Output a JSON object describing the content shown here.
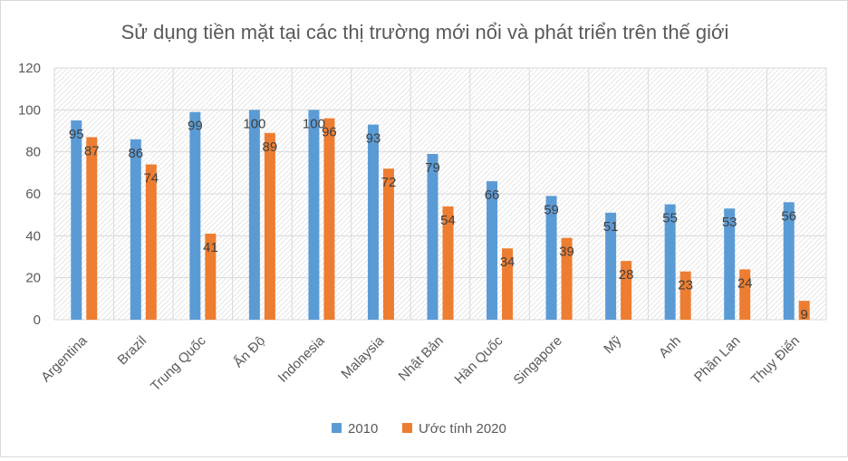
{
  "chart_data": {
    "type": "bar",
    "title": "Sử dụng tiền mặt tại các thị trường mới nổi và phát triển trên thế giới",
    "categories": [
      "Argentina",
      "Brazil",
      "Trung Quốc",
      "Ấn Độ",
      "Indonesia",
      "Malaysia",
      "Nhật Bản",
      "Hàn Quốc",
      "Singapore",
      "Mỹ",
      "Anh",
      "Phần Lan",
      "Thụy Điển"
    ],
    "series": [
      {
        "name": "2010",
        "color": "#5b9bd5",
        "values": [
          95,
          86,
          99,
          100,
          100,
          93,
          79,
          66,
          59,
          51,
          55,
          53,
          56
        ]
      },
      {
        "name": "Ước tính 2020",
        "color": "#ed7d31",
        "values": [
          87,
          74,
          41,
          89,
          96,
          72,
          54,
          34,
          39,
          28,
          23,
          24,
          9
        ]
      }
    ],
    "ylim": [
      0,
      120
    ],
    "yticks": [
      0,
      20,
      40,
      60,
      80,
      100,
      120
    ],
    "grid": true,
    "legend": "bottom",
    "xlabel": "",
    "ylabel": ""
  }
}
